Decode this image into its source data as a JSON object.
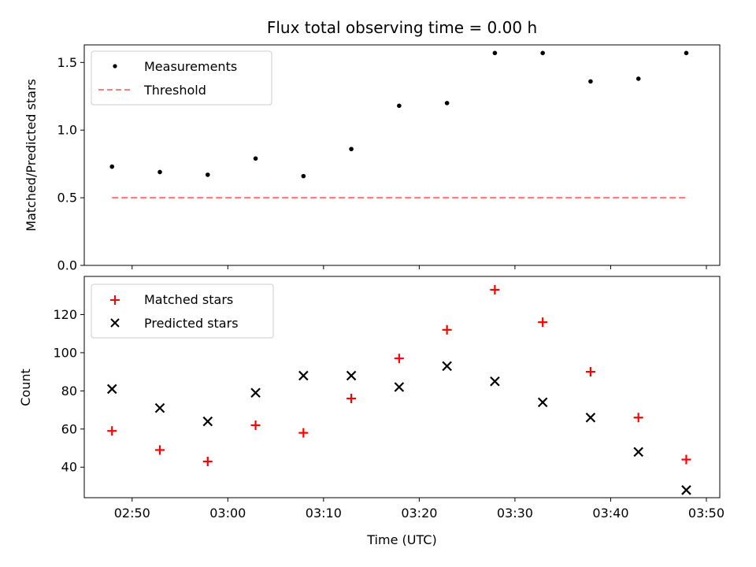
{
  "chart_data": {
    "title": "Flux total observing time = 0.00 h",
    "xlabel": "Time (UTC)",
    "x_ticks": [
      "02:50",
      "03:00",
      "03:10",
      "03:20",
      "03:30",
      "03:40",
      "03:50"
    ],
    "x_tick_minutes": [
      170,
      180,
      190,
      200,
      210,
      220,
      230
    ],
    "xlim_minutes": [
      165,
      231.4
    ],
    "x_times": [
      "02:48",
      "02:53",
      "02:58",
      "03:03",
      "03:08",
      "03:13",
      "03:18",
      "03:23",
      "03:28",
      "03:33",
      "03:38",
      "03:43",
      "03:48"
    ],
    "x_minutes": [
      167.9,
      172.9,
      177.9,
      182.9,
      187.9,
      192.9,
      197.9,
      202.9,
      207.9,
      212.9,
      217.9,
      222.9,
      227.9
    ],
    "panels": [
      {
        "type": "scatter",
        "ylabel": "Matched/Predicted stars",
        "ylim": [
          0,
          1.63
        ],
        "y_ticks": [
          "0.0",
          "0.5",
          "1.0",
          "1.5"
        ],
        "y_tick_values": [
          0,
          0.5,
          1.0,
          1.5
        ],
        "legend_position": "top-left",
        "series": [
          {
            "name": "Measurements",
            "marker": "dot",
            "color": "#000000",
            "values": [
              0.73,
              0.69,
              0.67,
              0.79,
              0.66,
              0.86,
              1.18,
              1.2,
              1.57,
              1.57,
              1.36,
              1.38,
              1.57
            ]
          }
        ],
        "threshold": {
          "name": "Threshold",
          "value": 0.5,
          "color": "#ff7f7f"
        }
      },
      {
        "type": "scatter",
        "ylabel": "Count",
        "ylim": [
          24,
          140
        ],
        "y_ticks": [
          "40",
          "60",
          "80",
          "100",
          "120"
        ],
        "y_tick_values": [
          40,
          60,
          80,
          100,
          120
        ],
        "legend_position": "top-left",
        "series": [
          {
            "name": "Matched stars",
            "marker": "plus",
            "color": "#ff0000",
            "values": [
              59,
              49,
              43,
              62,
              58,
              76,
              97,
              112,
              133,
              116,
              90,
              66,
              44
            ]
          },
          {
            "name": "Predicted stars",
            "marker": "x",
            "color": "#000000",
            "values": [
              81,
              71,
              64,
              79,
              88,
              88,
              82,
              93,
              85,
              74,
              66,
              48,
              28
            ]
          }
        ]
      }
    ]
  }
}
